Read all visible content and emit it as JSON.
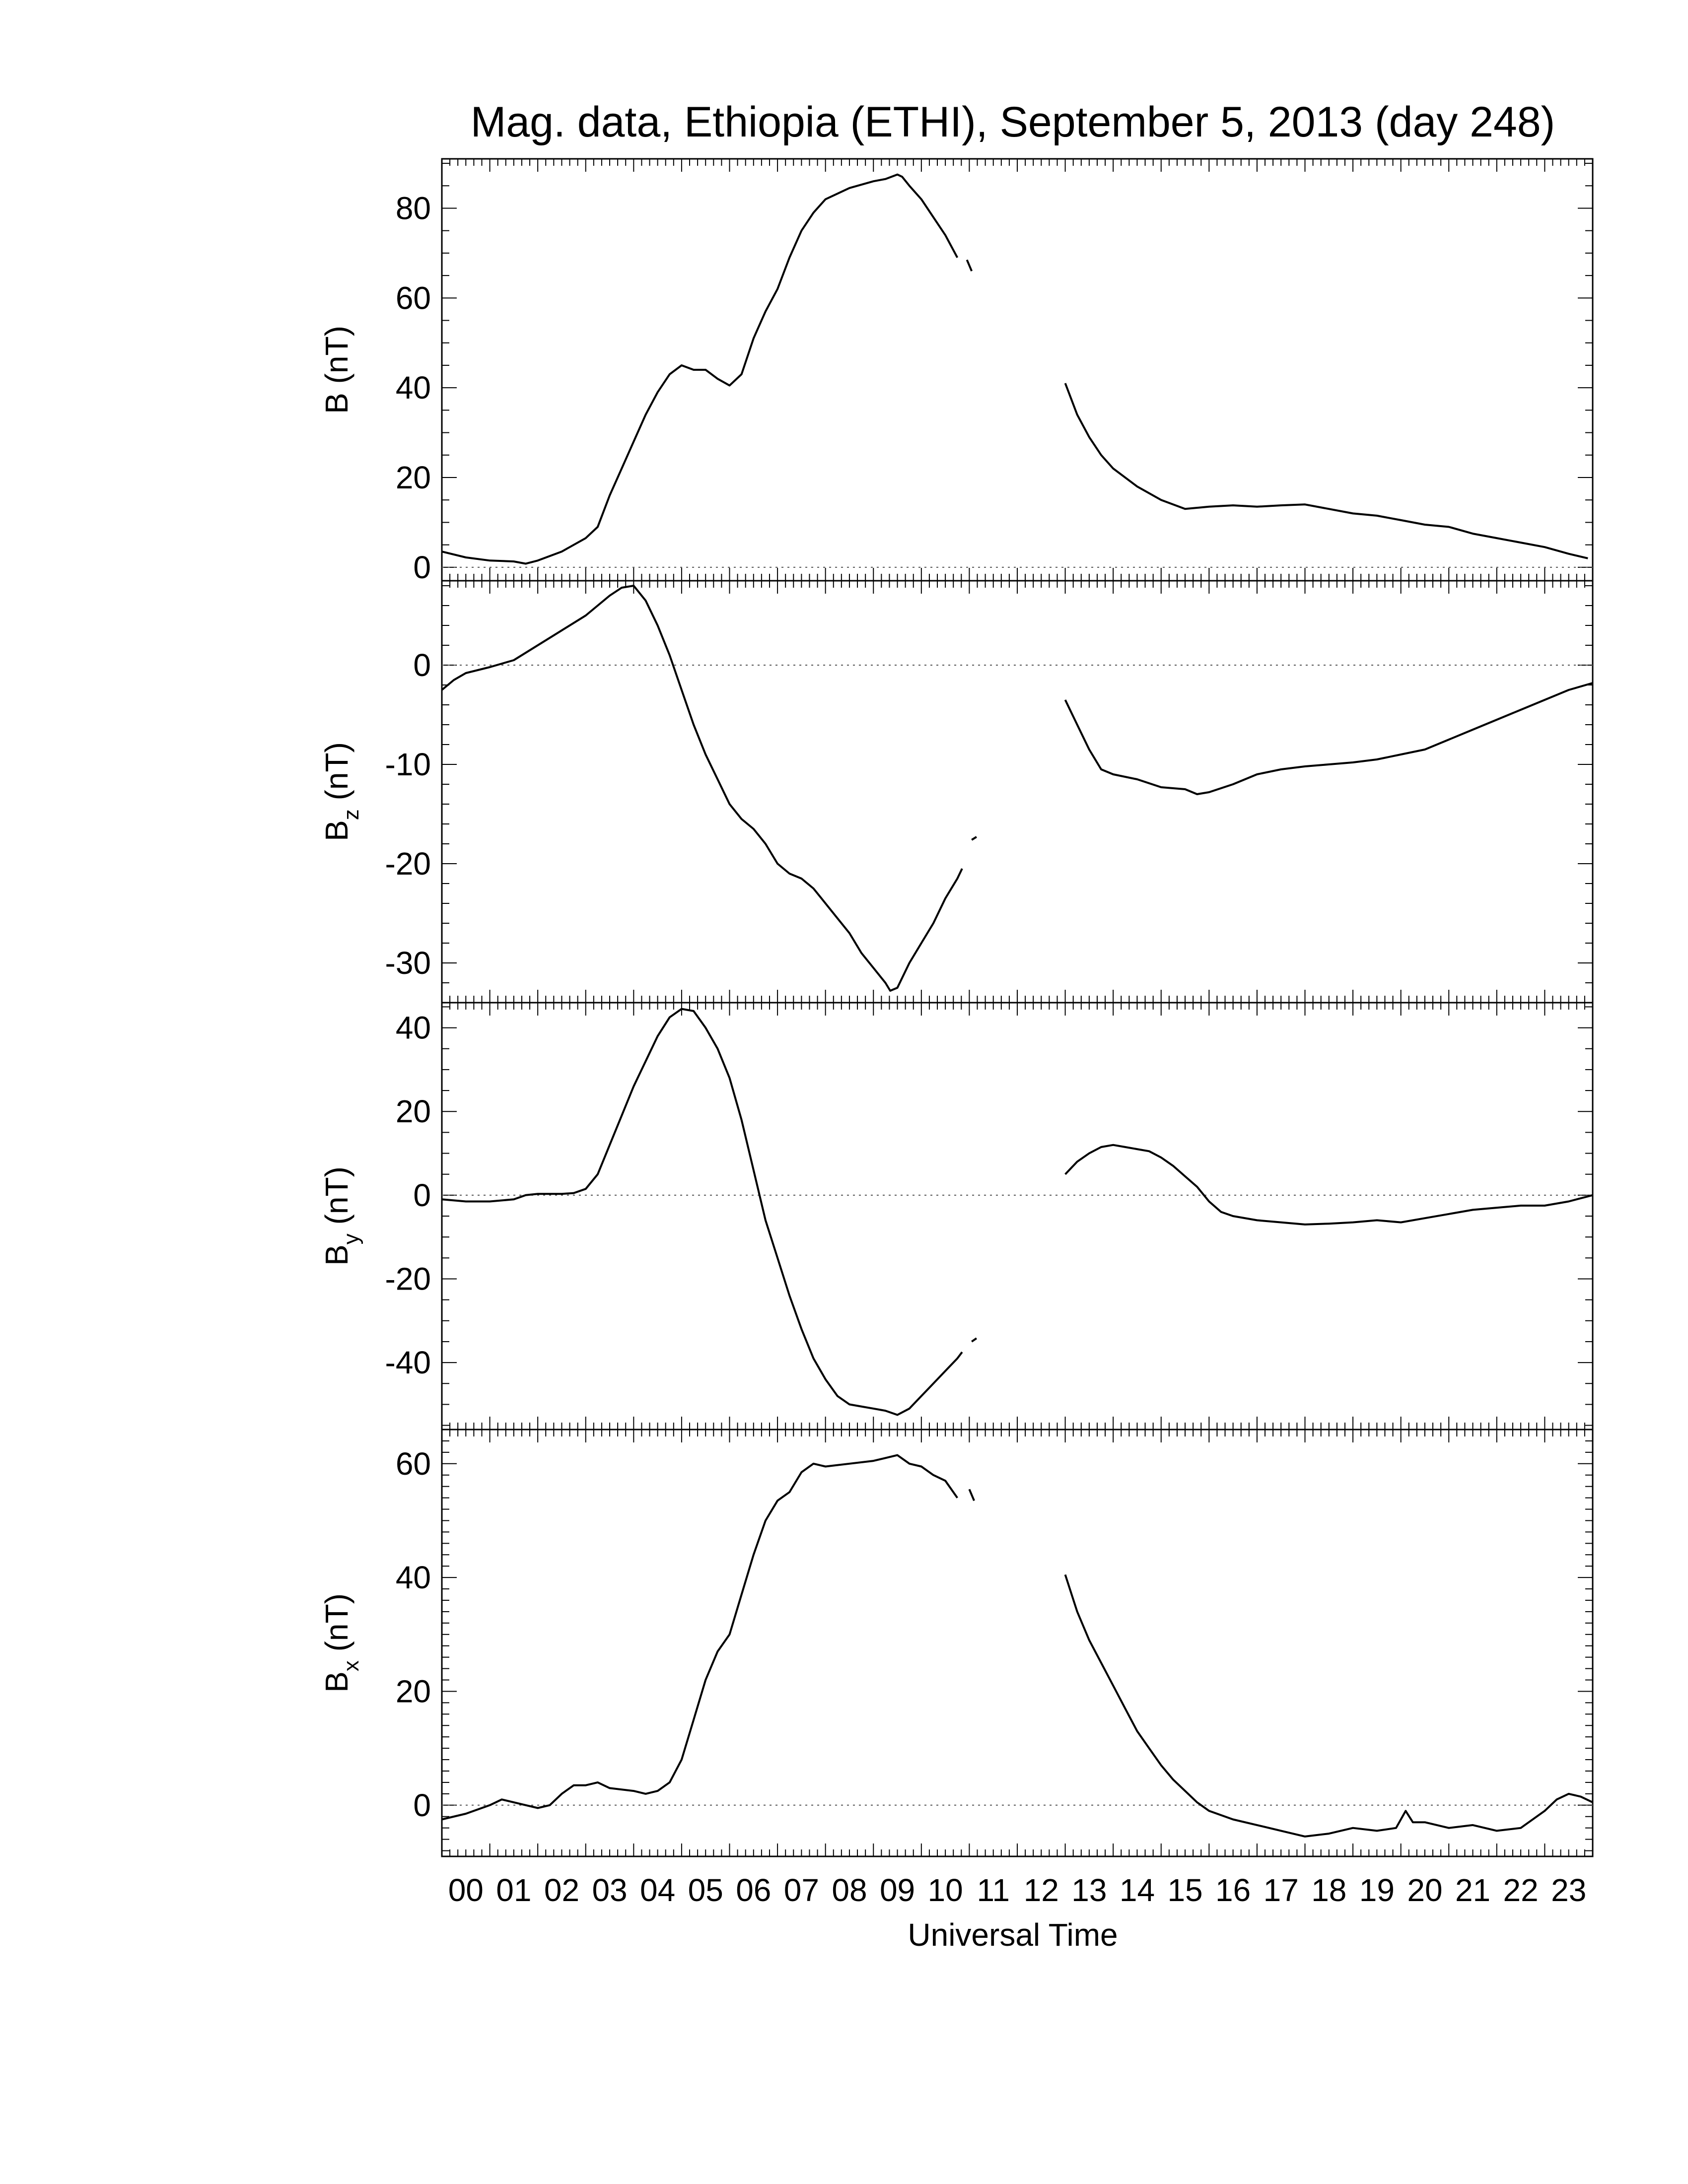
{
  "title": "Mag. data, Ethiopia (ETHI), September 5, 2013 (day 248)",
  "xlabel": "Universal Time",
  "x_ticks": [
    "00",
    "01",
    "02",
    "03",
    "04",
    "05",
    "06",
    "07",
    "08",
    "09",
    "10",
    "11",
    "12",
    "13",
    "14",
    "15",
    "16",
    "17",
    "18",
    "19",
    "20",
    "21",
    "22",
    "23"
  ],
  "colors": {
    "line": "#000000",
    "zero_line": "#555555",
    "background": "#ffffff"
  },
  "chart_data": [
    {
      "type": "line",
      "panel": "B",
      "ylabel_main": "B (nT)",
      "ylabel_sub": "",
      "ylabel_tail": "",
      "ylim": [
        -3,
        91
      ],
      "yticks": [
        0,
        20,
        40,
        60,
        80
      ],
      "zero_line": true,
      "x_range_hours": [
        0,
        24
      ],
      "segments": [
        [
          [
            0,
            3.5
          ],
          [
            0.5,
            2.2
          ],
          [
            1,
            1.5
          ],
          [
            1.5,
            1.3
          ],
          [
            1.75,
            0.8
          ],
          [
            2,
            1.5
          ],
          [
            2.5,
            3.5
          ],
          [
            3,
            6.5
          ],
          [
            3.25,
            9
          ],
          [
            3.5,
            16
          ],
          [
            3.75,
            22
          ],
          [
            4,
            28
          ],
          [
            4.25,
            34
          ],
          [
            4.5,
            39
          ],
          [
            4.75,
            43
          ],
          [
            5,
            45
          ],
          [
            5.25,
            44
          ],
          [
            5.5,
            44
          ],
          [
            5.75,
            42
          ],
          [
            6,
            40.5
          ],
          [
            6.25,
            43
          ],
          [
            6.5,
            51
          ],
          [
            6.75,
            57
          ],
          [
            7,
            62
          ],
          [
            7.25,
            69
          ],
          [
            7.5,
            75
          ],
          [
            7.75,
            79
          ],
          [
            8,
            82
          ],
          [
            8.5,
            84.5
          ],
          [
            9,
            86
          ],
          [
            9.25,
            86.5
          ],
          [
            9.5,
            87.5
          ],
          [
            9.6,
            87
          ],
          [
            9.75,
            85
          ],
          [
            10,
            82
          ],
          [
            10.25,
            78
          ],
          [
            10.5,
            74
          ],
          [
            10.75,
            69
          ]
        ],
        [
          [
            10.95,
            68.5
          ],
          [
            11.05,
            66
          ]
        ],
        [
          [
            13,
            41
          ],
          [
            13.25,
            34
          ],
          [
            13.5,
            29
          ],
          [
            13.75,
            25
          ],
          [
            14,
            22
          ],
          [
            14.5,
            18
          ],
          [
            15,
            15
          ],
          [
            15.5,
            13
          ],
          [
            16,
            13.5
          ],
          [
            16.5,
            13.8
          ],
          [
            17,
            13.5
          ],
          [
            17.5,
            13.8
          ],
          [
            18,
            14
          ],
          [
            18.5,
            13
          ],
          [
            19,
            12
          ],
          [
            19.5,
            11.5
          ],
          [
            20,
            10.5
          ],
          [
            20.5,
            9.5
          ],
          [
            21,
            9
          ],
          [
            21.5,
            7.5
          ],
          [
            22,
            6.5
          ],
          [
            22.5,
            5.5
          ],
          [
            23,
            4.5
          ],
          [
            23.5,
            3
          ],
          [
            23.9,
            2
          ]
        ]
      ]
    },
    {
      "type": "line",
      "panel": "Bz",
      "ylabel_main": "B",
      "ylabel_sub": "z",
      "ylabel_tail": " (nT)",
      "ylim": [
        -34,
        8.5
      ],
      "yticks": [
        0,
        -10,
        -20,
        -30
      ],
      "zero_line": true,
      "x_range_hours": [
        0,
        24
      ],
      "segments": [
        [
          [
            0,
            -2.5
          ],
          [
            0.25,
            -1.5
          ],
          [
            0.5,
            -0.8
          ],
          [
            1,
            -0.2
          ],
          [
            1.5,
            0.5
          ],
          [
            2,
            2
          ],
          [
            2.5,
            3.5
          ],
          [
            3,
            5
          ],
          [
            3.5,
            7
          ],
          [
            3.75,
            7.8
          ],
          [
            4,
            8
          ],
          [
            4.25,
            6.5
          ],
          [
            4.5,
            4
          ],
          [
            4.75,
            1
          ],
          [
            5,
            -2.5
          ],
          [
            5.25,
            -6
          ],
          [
            5.5,
            -9
          ],
          [
            5.75,
            -11.5
          ],
          [
            6,
            -14
          ],
          [
            6.25,
            -15.5
          ],
          [
            6.5,
            -16.5
          ],
          [
            6.75,
            -18
          ],
          [
            7,
            -20
          ],
          [
            7.25,
            -21
          ],
          [
            7.5,
            -21.5
          ],
          [
            7.75,
            -22.5
          ],
          [
            8,
            -24
          ],
          [
            8.25,
            -25.5
          ],
          [
            8.5,
            -27
          ],
          [
            8.75,
            -29
          ],
          [
            9,
            -30.5
          ],
          [
            9.25,
            -32
          ],
          [
            9.35,
            -32.8
          ],
          [
            9.5,
            -32.5
          ],
          [
            9.75,
            -30
          ],
          [
            10,
            -28
          ],
          [
            10.25,
            -26
          ],
          [
            10.5,
            -23.5
          ],
          [
            10.75,
            -21.5
          ],
          [
            10.85,
            -20.5
          ]
        ],
        [
          [
            11.05,
            -17.6
          ],
          [
            11.15,
            -17.3
          ]
        ],
        [
          [
            13,
            -3.5
          ],
          [
            13.25,
            -6
          ],
          [
            13.5,
            -8.5
          ],
          [
            13.75,
            -10.5
          ],
          [
            14,
            -11
          ],
          [
            14.5,
            -11.5
          ],
          [
            15,
            -12.3
          ],
          [
            15.5,
            -12.5
          ],
          [
            15.75,
            -13
          ],
          [
            16,
            -12.8
          ],
          [
            16.5,
            -12
          ],
          [
            17,
            -11
          ],
          [
            17.5,
            -10.5
          ],
          [
            18,
            -10.2
          ],
          [
            18.5,
            -10
          ],
          [
            19,
            -9.8
          ],
          [
            19.5,
            -9.5
          ],
          [
            20,
            -9
          ],
          [
            20.5,
            -8.5
          ],
          [
            21,
            -7.5
          ],
          [
            21.5,
            -6.5
          ],
          [
            22,
            -5.5
          ],
          [
            22.5,
            -4.5
          ],
          [
            23,
            -3.5
          ],
          [
            23.5,
            -2.5
          ],
          [
            24,
            -1.8
          ]
        ]
      ]
    },
    {
      "type": "line",
      "panel": "By",
      "ylabel_main": "B",
      "ylabel_sub": "y",
      "ylabel_tail": " (nT)",
      "ylim": [
        -56,
        46
      ],
      "yticks": [
        40,
        20,
        0,
        -20,
        -40
      ],
      "zero_line": true,
      "x_range_hours": [
        0,
        24
      ],
      "segments": [
        [
          [
            0,
            -1
          ],
          [
            0.5,
            -1.5
          ],
          [
            1,
            -1.5
          ],
          [
            1.5,
            -1
          ],
          [
            1.75,
            0
          ],
          [
            2,
            0.3
          ],
          [
            2.5,
            0.3
          ],
          [
            2.75,
            0.5
          ],
          [
            3,
            1.5
          ],
          [
            3.25,
            5
          ],
          [
            3.5,
            12
          ],
          [
            3.75,
            19
          ],
          [
            4,
            26
          ],
          [
            4.25,
            32
          ],
          [
            4.5,
            38
          ],
          [
            4.75,
            42.5
          ],
          [
            5,
            44.5
          ],
          [
            5.25,
            44
          ],
          [
            5.5,
            40
          ],
          [
            5.75,
            35
          ],
          [
            6,
            28
          ],
          [
            6.25,
            18
          ],
          [
            6.5,
            6
          ],
          [
            6.75,
            -6
          ],
          [
            7,
            -15
          ],
          [
            7.25,
            -24
          ],
          [
            7.5,
            -32
          ],
          [
            7.75,
            -39
          ],
          [
            8,
            -44
          ],
          [
            8.25,
            -48
          ],
          [
            8.5,
            -50
          ],
          [
            8.75,
            -50.5
          ],
          [
            9,
            -51
          ],
          [
            9.25,
            -51.5
          ],
          [
            9.5,
            -52.5
          ],
          [
            9.75,
            -51
          ],
          [
            10,
            -48
          ],
          [
            10.25,
            -45
          ],
          [
            10.5,
            -42
          ],
          [
            10.75,
            -39
          ],
          [
            10.85,
            -37.5
          ]
        ],
        [
          [
            11.05,
            -35
          ],
          [
            11.15,
            -34.2
          ]
        ],
        [
          [
            13,
            5
          ],
          [
            13.25,
            8
          ],
          [
            13.5,
            10
          ],
          [
            13.75,
            11.5
          ],
          [
            14,
            12
          ],
          [
            14.25,
            11.5
          ],
          [
            14.5,
            11
          ],
          [
            14.75,
            10.5
          ],
          [
            15,
            9
          ],
          [
            15.25,
            7
          ],
          [
            15.5,
            4.5
          ],
          [
            15.75,
            2
          ],
          [
            16,
            -1.5
          ],
          [
            16.25,
            -4
          ],
          [
            16.5,
            -5
          ],
          [
            17,
            -6
          ],
          [
            17.5,
            -6.5
          ],
          [
            18,
            -7
          ],
          [
            18.5,
            -6.8
          ],
          [
            19,
            -6.5
          ],
          [
            19.5,
            -6
          ],
          [
            20,
            -6.5
          ],
          [
            20.5,
            -5.5
          ],
          [
            21,
            -4.5
          ],
          [
            21.5,
            -3.5
          ],
          [
            22,
            -3
          ],
          [
            22.5,
            -2.5
          ],
          [
            23,
            -2.5
          ],
          [
            23.5,
            -1.5
          ],
          [
            24,
            0
          ]
        ]
      ]
    },
    {
      "type": "line",
      "panel": "Bx",
      "ylabel_main": "B",
      "ylabel_sub": "x",
      "ylabel_tail": " (nT)",
      "ylim": [
        -9,
        66
      ],
      "yticks": [
        60,
        40,
        20,
        0
      ],
      "zero_line": true,
      "x_range_hours": [
        0,
        24
      ],
      "segments": [
        [
          [
            0,
            -2.5
          ],
          [
            0.5,
            -1.5
          ],
          [
            1,
            0
          ],
          [
            1.25,
            1
          ],
          [
            1.5,
            0.5
          ],
          [
            1.75,
            0
          ],
          [
            2,
            -0.5
          ],
          [
            2.25,
            0
          ],
          [
            2.5,
            2
          ],
          [
            2.75,
            3.5
          ],
          [
            3,
            3.5
          ],
          [
            3.25,
            4
          ],
          [
            3.5,
            3
          ],
          [
            4,
            2.5
          ],
          [
            4.25,
            2
          ],
          [
            4.5,
            2.5
          ],
          [
            4.75,
            4
          ],
          [
            5,
            8
          ],
          [
            5.25,
            15
          ],
          [
            5.5,
            22
          ],
          [
            5.75,
            27
          ],
          [
            6,
            30
          ],
          [
            6.25,
            37
          ],
          [
            6.5,
            44
          ],
          [
            6.75,
            50
          ],
          [
            7,
            53.5
          ],
          [
            7.25,
            55
          ],
          [
            7.5,
            58.5
          ],
          [
            7.75,
            60
          ],
          [
            8,
            59.5
          ],
          [
            8.5,
            60
          ],
          [
            9,
            60.5
          ],
          [
            9.5,
            61.5
          ],
          [
            9.75,
            60
          ],
          [
            10,
            59.5
          ],
          [
            10.25,
            58
          ],
          [
            10.5,
            57
          ],
          [
            10.75,
            54
          ]
        ],
        [
          [
            11,
            55.5
          ],
          [
            11.1,
            53.5
          ]
        ],
        [
          [
            13,
            40.5
          ],
          [
            13.25,
            34
          ],
          [
            13.5,
            29
          ],
          [
            13.75,
            25
          ],
          [
            14,
            21
          ],
          [
            14.25,
            17
          ],
          [
            14.5,
            13
          ],
          [
            14.75,
            10
          ],
          [
            15,
            7
          ],
          [
            15.25,
            4.5
          ],
          [
            15.5,
            2.5
          ],
          [
            15.75,
            0.5
          ],
          [
            16,
            -1
          ],
          [
            16.5,
            -2.5
          ],
          [
            17,
            -3.5
          ],
          [
            17.5,
            -4.5
          ],
          [
            18,
            -5.5
          ],
          [
            18.5,
            -5
          ],
          [
            19,
            -4
          ],
          [
            19.5,
            -4.5
          ],
          [
            19.9,
            -4
          ],
          [
            20.1,
            -1
          ],
          [
            20.25,
            -3
          ],
          [
            20.5,
            -3
          ],
          [
            21,
            -4
          ],
          [
            21.5,
            -3.5
          ],
          [
            22,
            -4.5
          ],
          [
            22.5,
            -4
          ],
          [
            23,
            -1
          ],
          [
            23.25,
            1
          ],
          [
            23.5,
            2
          ],
          [
            23.75,
            1.5
          ],
          [
            24,
            0.5
          ]
        ]
      ]
    }
  ]
}
